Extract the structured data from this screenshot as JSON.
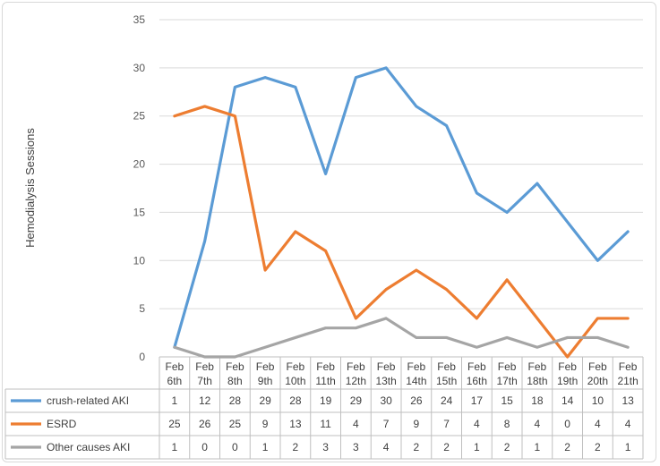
{
  "chart_data": {
    "type": "line",
    "title": "",
    "xlabel": "",
    "ylabel": "Hemodialysis Sessions",
    "ylim": [
      0,
      35
    ],
    "yticks": [
      0,
      5,
      10,
      15,
      20,
      25,
      30,
      35
    ],
    "grid": true,
    "legend": "data table below chart",
    "categories": [
      [
        "Feb",
        "6th"
      ],
      [
        "Feb",
        "7th"
      ],
      [
        "Feb",
        "8th"
      ],
      [
        "Feb",
        "9th"
      ],
      [
        "Feb",
        "10th"
      ],
      [
        "Feb",
        "11th"
      ],
      [
        "Feb",
        "12th"
      ],
      [
        "Feb",
        "13th"
      ],
      [
        "Feb",
        "14th"
      ],
      [
        "Feb",
        "15th"
      ],
      [
        "Feb",
        "16th"
      ],
      [
        "Feb",
        "17th"
      ],
      [
        "Feb",
        "18th"
      ],
      [
        "Feb",
        "19th"
      ],
      [
        "Feb",
        "20th"
      ],
      [
        "Feb",
        "21th"
      ]
    ],
    "series": [
      {
        "name": "crush-related AKI",
        "color": "#5b9bd5",
        "values": [
          1,
          12,
          28,
          29,
          28,
          19,
          29,
          30,
          26,
          24,
          17,
          15,
          18,
          14,
          10,
          13
        ]
      },
      {
        "name": "ESRD",
        "color": "#ed7d31",
        "values": [
          25,
          26,
          25,
          9,
          13,
          11,
          4,
          7,
          9,
          7,
          4,
          8,
          4,
          0,
          4,
          4
        ]
      },
      {
        "name": "Other causes AKI",
        "color": "#a5a5a5",
        "values": [
          1,
          0,
          0,
          1,
          2,
          3,
          3,
          4,
          2,
          2,
          1,
          2,
          1,
          2,
          2,
          1
        ]
      }
    ]
  }
}
